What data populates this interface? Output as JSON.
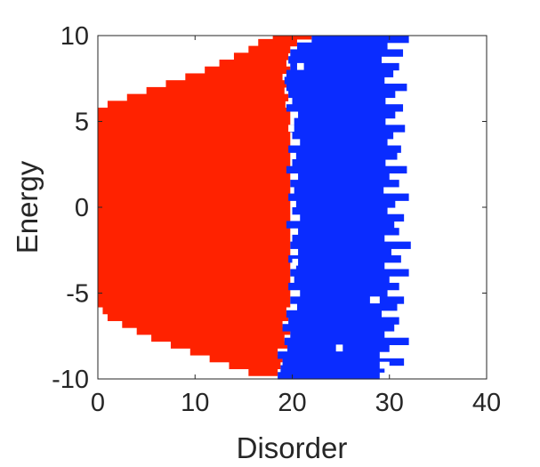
{
  "chart_data": {
    "type": "heatmap",
    "title": "",
    "xlabel": "Disorder",
    "ylabel": "Energy",
    "xlim": [
      0,
      40
    ],
    "ylim": [
      -10,
      10
    ],
    "xticks": [
      0,
      10,
      20,
      30,
      40
    ],
    "yticks": [
      -10,
      -5,
      0,
      5,
      10
    ],
    "grid": false,
    "legend": "none",
    "energy_step": 0.4,
    "colors": {
      "localized": "#ff2200",
      "extended": "#0a2cff",
      "background": "#ffffff",
      "axis": "#262626"
    },
    "series": [
      {
        "color_key": "localized",
        "rows": [
          {
            "e": -9.8,
            "from": 0,
            "to": 0
          },
          {
            "e": -9.4,
            "from": 0,
            "to": 0
          },
          {
            "e": -9.0,
            "from": 0,
            "to": 0
          },
          {
            "e": -8.6,
            "from": 0,
            "to": 0
          },
          {
            "e": -8.2,
            "from": 0,
            "to": 0
          },
          {
            "e": -7.8,
            "from": 0,
            "to": 0
          },
          {
            "e": -7.4,
            "from": 0,
            "to": 0
          },
          {
            "e": -7.0,
            "from": 0,
            "to": 0
          },
          {
            "e": -6.6,
            "from": 0,
            "to": 0
          },
          {
            "e": -6.2,
            "from": 0,
            "to": 0
          },
          {
            "e": -5.8,
            "from": 0,
            "to": 0
          },
          {
            "e": -5.4,
            "from": 0,
            "to": 0
          },
          {
            "e": 5.4,
            "from": 0,
            "to": 0
          },
          {
            "e": 5.8,
            "from": 0,
            "to": 0
          },
          {
            "e": 6.2,
            "from": 0,
            "to": 0
          },
          {
            "e": 6.6,
            "from": 0,
            "to": 0
          },
          {
            "e": 7.0,
            "from": 0,
            "to": 0
          },
          {
            "e": 7.4,
            "from": 0,
            "to": 0
          },
          {
            "e": 7.8,
            "from": 0,
            "to": 0
          },
          {
            "e": 8.2,
            "from": 0,
            "to": 0
          },
          {
            "e": 8.6,
            "from": 0,
            "to": 0
          },
          {
            "e": 9.0,
            "from": 0,
            "to": 0
          },
          {
            "e": 9.4,
            "from": 0,
            "to": 0
          },
          {
            "e": 9.8,
            "from": 0,
            "to": 0
          }
        ],
        "band": [
          {
            "e_from": -9.8,
            "e_to": -9.4,
            "from": 15.5,
            "to": 18.5
          },
          {
            "e_from": -9.4,
            "e_to": -9.0,
            "from": 13.5,
            "to": 18.8
          },
          {
            "e_from": -9.0,
            "e_to": -8.6,
            "from": 11.5,
            "to": 19.0
          },
          {
            "e_from": -8.6,
            "e_to": -8.2,
            "from": 9.5,
            "to": 18.5
          },
          {
            "e_from": -8.2,
            "e_to": -7.8,
            "from": 7.5,
            "to": 19.5
          },
          {
            "e_from": -7.8,
            "e_to": -7.4,
            "from": 5.5,
            "to": 19.2
          },
          {
            "e_from": -7.4,
            "e_to": -7.0,
            "from": 4.0,
            "to": 19.8
          },
          {
            "e_from": -7.0,
            "e_to": -6.6,
            "from": 2.5,
            "to": 19.0
          },
          {
            "e_from": -6.6,
            "e_to": -6.2,
            "from": 1.0,
            "to": 19.6
          },
          {
            "e_from": -6.2,
            "e_to": -5.8,
            "from": 0.5,
            "to": 19.4
          },
          {
            "e_from": -5.8,
            "e_to": 5.8,
            "from": 0,
            "to": 19.8
          },
          {
            "e_from": 5.8,
            "e_to": 6.2,
            "from": 1.0,
            "to": 19.3
          },
          {
            "e_from": 6.2,
            "e_to": 6.6,
            "from": 3.0,
            "to": 19.6
          },
          {
            "e_from": 6.6,
            "e_to": 7.0,
            "from": 5.0,
            "to": 19.2
          },
          {
            "e_from": 7.0,
            "e_to": 7.4,
            "from": 7.0,
            "to": 19.4
          },
          {
            "e_from": 7.4,
            "e_to": 7.8,
            "from": 9.0,
            "to": 19.0
          },
          {
            "e_from": 7.8,
            "e_to": 8.2,
            "from": 11.0,
            "to": 19.8
          },
          {
            "e_from": 8.2,
            "e_to": 8.6,
            "from": 12.5,
            "to": 19.4
          },
          {
            "e_from": 8.6,
            "e_to": 9.0,
            "from": 14.0,
            "to": 19.6
          },
          {
            "e_from": 9.0,
            "e_to": 9.4,
            "from": 15.5,
            "to": 19.8
          },
          {
            "e_from": 9.4,
            "e_to": 9.8,
            "from": 16.5,
            "to": 20.5
          },
          {
            "e_from": 9.8,
            "e_to": 10.0,
            "from": 18.0,
            "to": 22.0
          }
        ]
      },
      {
        "color_key": "extended",
        "band": [
          {
            "e_from": -10.0,
            "e_to": -9.6,
            "from": 18.5,
            "to": 29.0
          },
          {
            "e_from": -9.6,
            "e_to": -9.2,
            "from": 18.8,
            "to": 29.5
          },
          {
            "e_from": -9.2,
            "e_to": -8.8,
            "from": 19.0,
            "to": 31.5
          },
          {
            "e_from": -8.8,
            "e_to": -8.4,
            "from": 18.5,
            "to": 29.0
          },
          {
            "e_from": -8.4,
            "e_to": -8.0,
            "from": 19.5,
            "to": 30.0
          },
          {
            "e_from": -8.0,
            "e_to": -7.6,
            "from": 19.2,
            "to": 32.0
          },
          {
            "e_from": -7.6,
            "e_to": -7.2,
            "from": 19.8,
            "to": 29.5
          },
          {
            "e_from": -7.2,
            "e_to": -6.8,
            "from": 19.0,
            "to": 30.5
          },
          {
            "e_from": -6.8,
            "e_to": -6.4,
            "from": 19.6,
            "to": 31.0
          },
          {
            "e_from": -6.4,
            "e_to": -6.0,
            "from": 19.4,
            "to": 29.2
          },
          {
            "e_from": -6.0,
            "e_to": -5.6,
            "from": 20.5,
            "to": 30.8
          },
          {
            "e_from": -5.6,
            "e_to": -5.2,
            "from": 19.8,
            "to": 31.5
          },
          {
            "e_from": -5.2,
            "e_to": -4.8,
            "from": 20.8,
            "to": 29.8
          },
          {
            "e_from": -4.8,
            "e_to": -4.4,
            "from": 19.6,
            "to": 31.0
          },
          {
            "e_from": -4.4,
            "e_to": -4.0,
            "from": 20.2,
            "to": 30.0
          },
          {
            "e_from": -4.0,
            "e_to": -3.6,
            "from": 19.8,
            "to": 32.0
          },
          {
            "e_from": -3.6,
            "e_to": -3.2,
            "from": 20.4,
            "to": 29.5
          },
          {
            "e_from": -3.2,
            "e_to": -2.8,
            "from": 19.6,
            "to": 31.2
          },
          {
            "e_from": -2.8,
            "e_to": -2.4,
            "from": 20.6,
            "to": 30.2
          },
          {
            "e_from": -2.4,
            "e_to": -2.0,
            "from": 19.8,
            "to": 32.2
          },
          {
            "e_from": -2.0,
            "e_to": -1.6,
            "from": 20.0,
            "to": 29.5
          },
          {
            "e_from": -1.6,
            "e_to": -1.2,
            "from": 20.6,
            "to": 31.0
          },
          {
            "e_from": -1.2,
            "e_to": -0.8,
            "from": 19.4,
            "to": 30.5
          },
          {
            "e_from": -0.8,
            "e_to": -0.4,
            "from": 20.8,
            "to": 31.5
          },
          {
            "e_from": -0.4,
            "e_to": 0.0,
            "from": 20.0,
            "to": 29.8
          },
          {
            "e_from": 0.0,
            "e_to": 0.4,
            "from": 20.4,
            "to": 30.6
          },
          {
            "e_from": 0.4,
            "e_to": 0.8,
            "from": 19.6,
            "to": 32.0
          },
          {
            "e_from": 0.8,
            "e_to": 1.2,
            "from": 20.2,
            "to": 29.4
          },
          {
            "e_from": 1.2,
            "e_to": 1.6,
            "from": 19.8,
            "to": 31.0
          },
          {
            "e_from": 1.6,
            "e_to": 2.0,
            "from": 20.6,
            "to": 30.0
          },
          {
            "e_from": 2.0,
            "e_to": 2.4,
            "from": 19.4,
            "to": 31.8
          },
          {
            "e_from": 2.4,
            "e_to": 2.8,
            "from": 20.0,
            "to": 29.6
          },
          {
            "e_from": 2.8,
            "e_to": 3.2,
            "from": 20.4,
            "to": 30.8
          },
          {
            "e_from": 3.2,
            "e_to": 3.6,
            "from": 19.6,
            "to": 31.2
          },
          {
            "e_from": 3.6,
            "e_to": 4.0,
            "from": 20.8,
            "to": 29.8
          },
          {
            "e_from": 4.0,
            "e_to": 4.4,
            "from": 20.0,
            "to": 30.4
          },
          {
            "e_from": 4.4,
            "e_to": 4.8,
            "from": 19.8,
            "to": 31.6
          },
          {
            "e_from": 4.8,
            "e_to": 5.2,
            "from": 20.2,
            "to": 29.6
          },
          {
            "e_from": 5.2,
            "e_to": 5.6,
            "from": 20.6,
            "to": 30.6
          },
          {
            "e_from": 5.6,
            "e_to": 6.0,
            "from": 19.4,
            "to": 31.4
          },
          {
            "e_from": 6.0,
            "e_to": 6.4,
            "from": 20.0,
            "to": 29.6
          },
          {
            "e_from": 6.4,
            "e_to": 6.8,
            "from": 19.6,
            "to": 30.6
          },
          {
            "e_from": 6.8,
            "e_to": 7.2,
            "from": 19.4,
            "to": 31.8
          },
          {
            "e_from": 7.2,
            "e_to": 7.6,
            "from": 19.2,
            "to": 29.5
          },
          {
            "e_from": 7.6,
            "e_to": 8.0,
            "from": 19.4,
            "to": 30.4
          },
          {
            "e_from": 8.0,
            "e_to": 8.4,
            "from": 19.8,
            "to": 31.0
          },
          {
            "e_from": 8.4,
            "e_to": 8.8,
            "from": 19.6,
            "to": 29.2
          },
          {
            "e_from": 8.8,
            "e_to": 9.2,
            "from": 19.8,
            "to": 31.4
          },
          {
            "e_from": 9.2,
            "e_to": 9.6,
            "from": 20.5,
            "to": 29.8
          },
          {
            "e_from": 9.6,
            "e_to": 10.0,
            "from": 22.0,
            "to": 32.0
          }
        ]
      }
    ]
  }
}
